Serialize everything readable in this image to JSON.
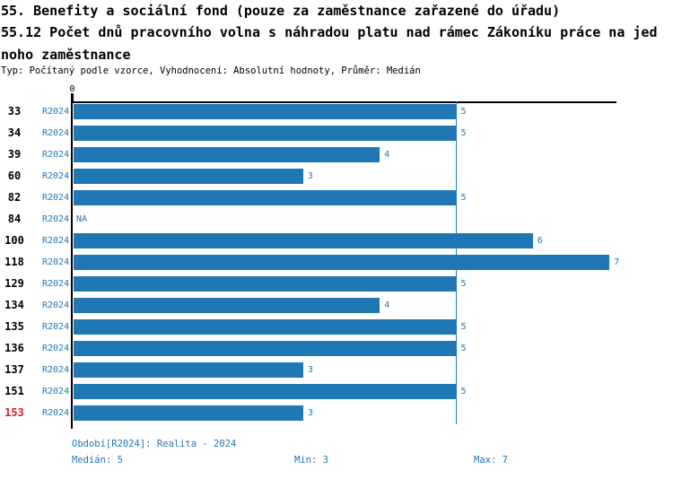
{
  "header": {
    "title": "55. Benefity a sociální fond (pouze za zaměstnance zařazené do úřadu)",
    "subtitle_line1": "55.12 Počet dnů pracovního volna s náhradou platu nad rámec Zákoníku práce na jed",
    "subtitle_line2": "noho zaměstnance",
    "meta": "Typ: Počítaný podle vzorce, Vyhodnocení: Absolutní hodnoty, Průměr: Medián"
  },
  "chart_data": {
    "type": "bar",
    "orientation": "horizontal",
    "title": "55.12 Počet dnů pracovního volna s náhradou platu nad rámec Zákoníku práce na jednoho zaměstnance",
    "axis_zero_label": "0",
    "period_label": "R2024",
    "categories": [
      "33",
      "34",
      "39",
      "60",
      "82",
      "84",
      "100",
      "118",
      "129",
      "134",
      "135",
      "136",
      "137",
      "151",
      "153"
    ],
    "values": [
      5,
      5,
      4,
      3,
      5,
      null,
      6,
      7,
      5,
      4,
      5,
      5,
      3,
      5,
      3
    ],
    "na_text": "NA",
    "xlim": [
      0,
      7
    ],
    "median_line_value": 5,
    "highlighted_category": "153",
    "grid": false,
    "legend": false,
    "colors": {
      "bar": "#1f77b4",
      "text_blue": "#1f77b4",
      "highlight_red": "#e31a1c",
      "axis": "#000000"
    }
  },
  "footer": {
    "period_info": "Období[R2024]: Realita - 2024",
    "median": "Medián: 5",
    "min": "Min: 3",
    "max": "Max: 7"
  }
}
